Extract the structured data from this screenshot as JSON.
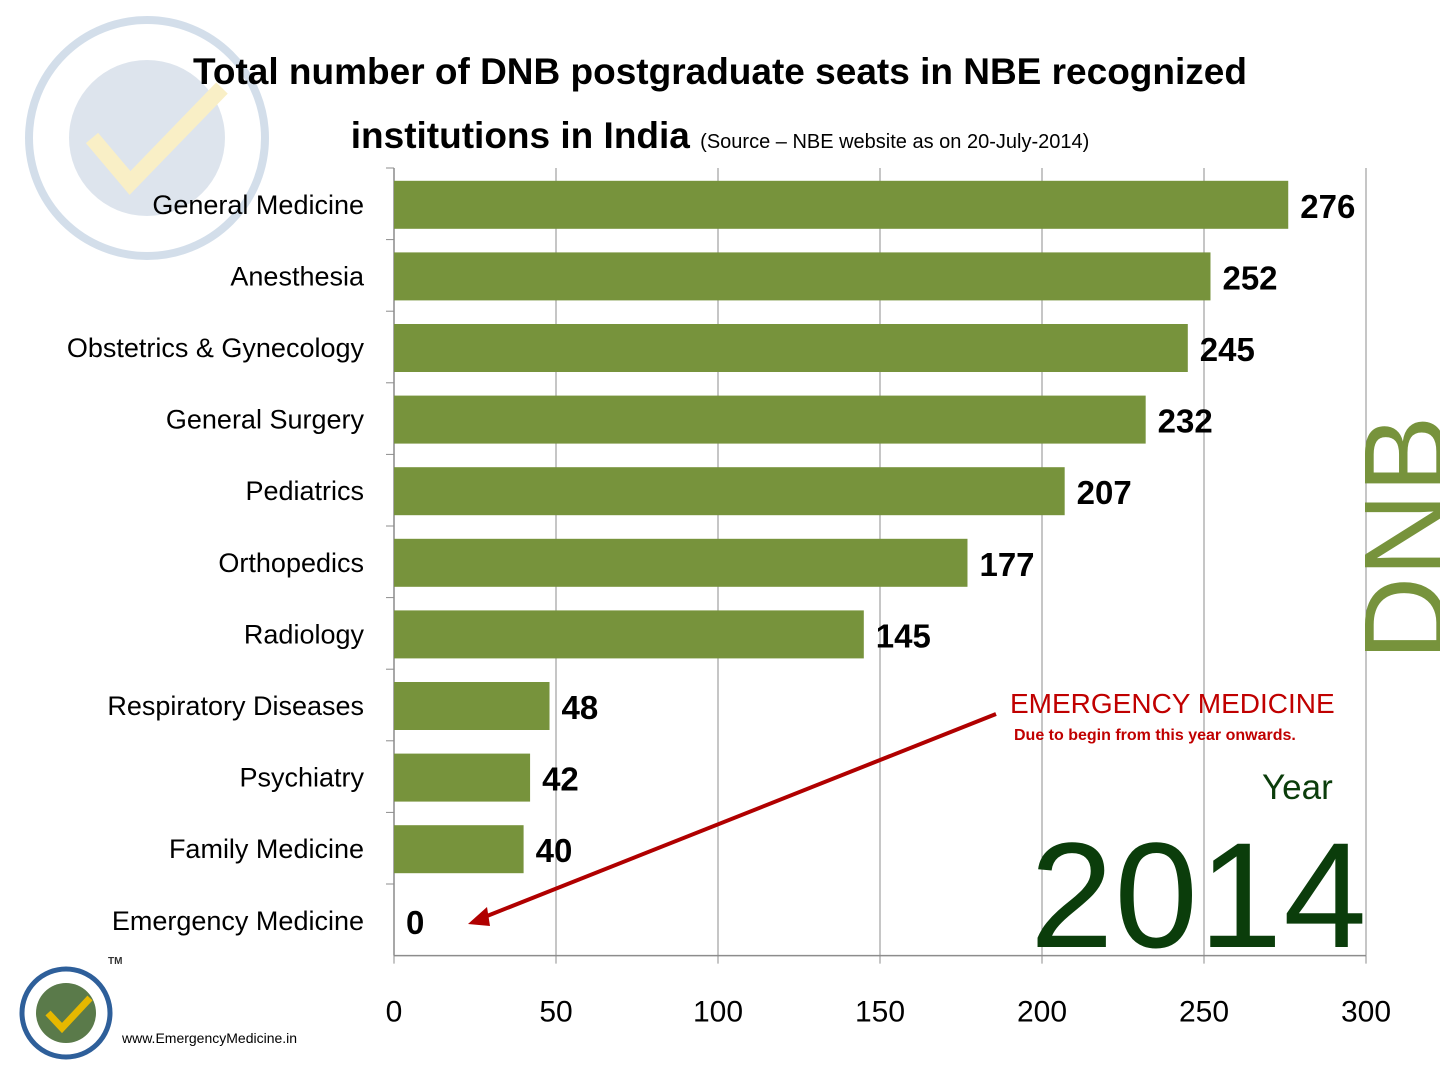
{
  "title": {
    "line1": "Total number of DNB postgraduate seats in NBE recognized",
    "line2": "institutions in India",
    "source": "(Source – NBE website as on 20-July-2014)"
  },
  "side_label": "DNB",
  "annotation": {
    "title": "EMERGENCY MEDICINE",
    "subtitle": "Due to begin from this year onwards."
  },
  "year": {
    "label": "Year",
    "value": "2014"
  },
  "footer": {
    "url": "www.EmergencyMedicine.in"
  },
  "logo": {
    "text": "EmergencyMedicine.in",
    "tm": "TM"
  },
  "colors": {
    "bar": "#77933c",
    "accent": "#c00000",
    "year": "#0b3d0b"
  },
  "chart_data": {
    "type": "bar",
    "orientation": "horizontal",
    "categories": [
      "General Medicine",
      "Anesthesia",
      "Obstetrics & Gynecology",
      "General Surgery",
      "Pediatrics",
      "Orthopedics",
      "Radiology",
      "Respiratory Diseases",
      "Psychiatry",
      "Family Medicine",
      "Emergency Medicine"
    ],
    "values": [
      276,
      252,
      245,
      232,
      207,
      177,
      145,
      48,
      42,
      40,
      0
    ],
    "data_labels": [
      "276",
      "252",
      "245",
      "232",
      "207",
      "177",
      "145",
      "48",
      "42",
      "40",
      "0"
    ],
    "xticks": [
      "0",
      "50",
      "100",
      "150",
      "200",
      "250",
      "300"
    ],
    "xlim": [
      0,
      300
    ],
    "grid": "vertical",
    "legend": "none"
  }
}
